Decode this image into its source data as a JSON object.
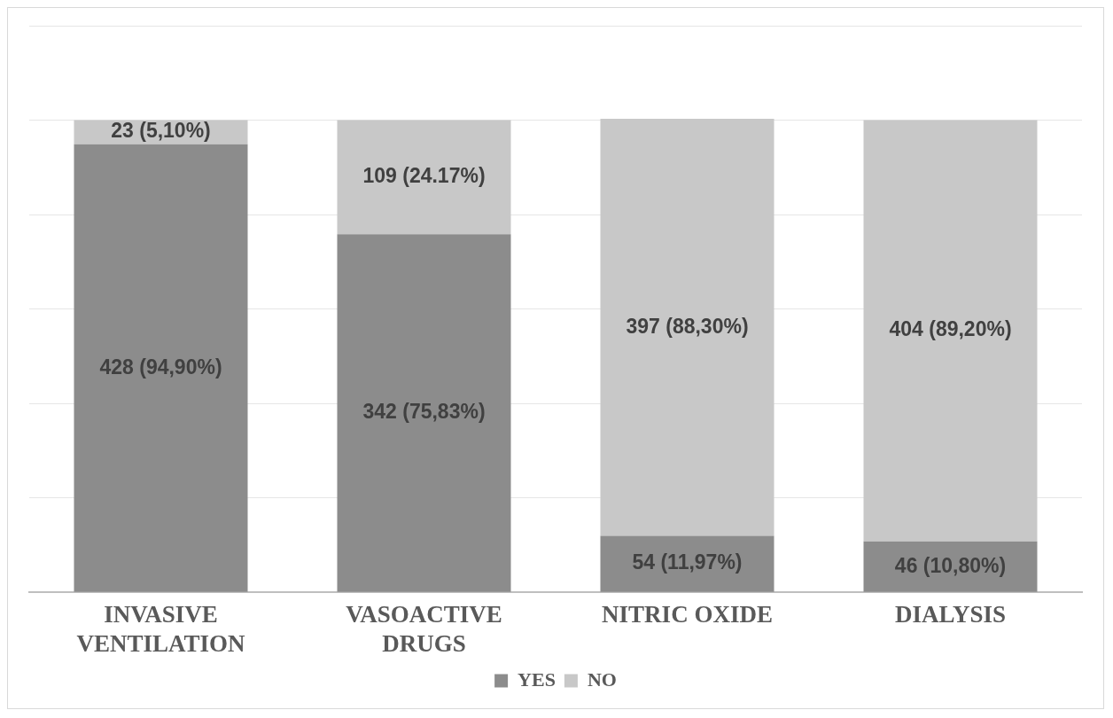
{
  "chart_data": {
    "type": "bar",
    "stacked": true,
    "categories": [
      "INVASIVE VENTILATION",
      "VASOACTIVE DRUGS",
      "NITRIC OXIDE",
      "DIALYSIS"
    ],
    "series": [
      {
        "name": "YES",
        "color": "#8c8c8c",
        "values": [
          94.9,
          75.83,
          11.97,
          10.8
        ],
        "value_labels": [
          "428 (94,90%)",
          "342 (75,83%)",
          "54 (11,97%)",
          "46 (10,80%)"
        ]
      },
      {
        "name": "NO",
        "color": "#c8c8c8",
        "values": [
          5.1,
          24.17,
          88.3,
          89.2
        ],
        "value_labels": [
          "23 (5,10%)",
          "109 (24.17%)",
          "397 (88,30%)",
          "404 (89,20%)"
        ]
      }
    ],
    "ylim": [
      0,
      120
    ],
    "yticks": [
      0,
      20,
      40,
      60,
      80,
      100,
      120
    ],
    "tick_labels": "x",
    "grid": "y",
    "legend": "bottom"
  }
}
